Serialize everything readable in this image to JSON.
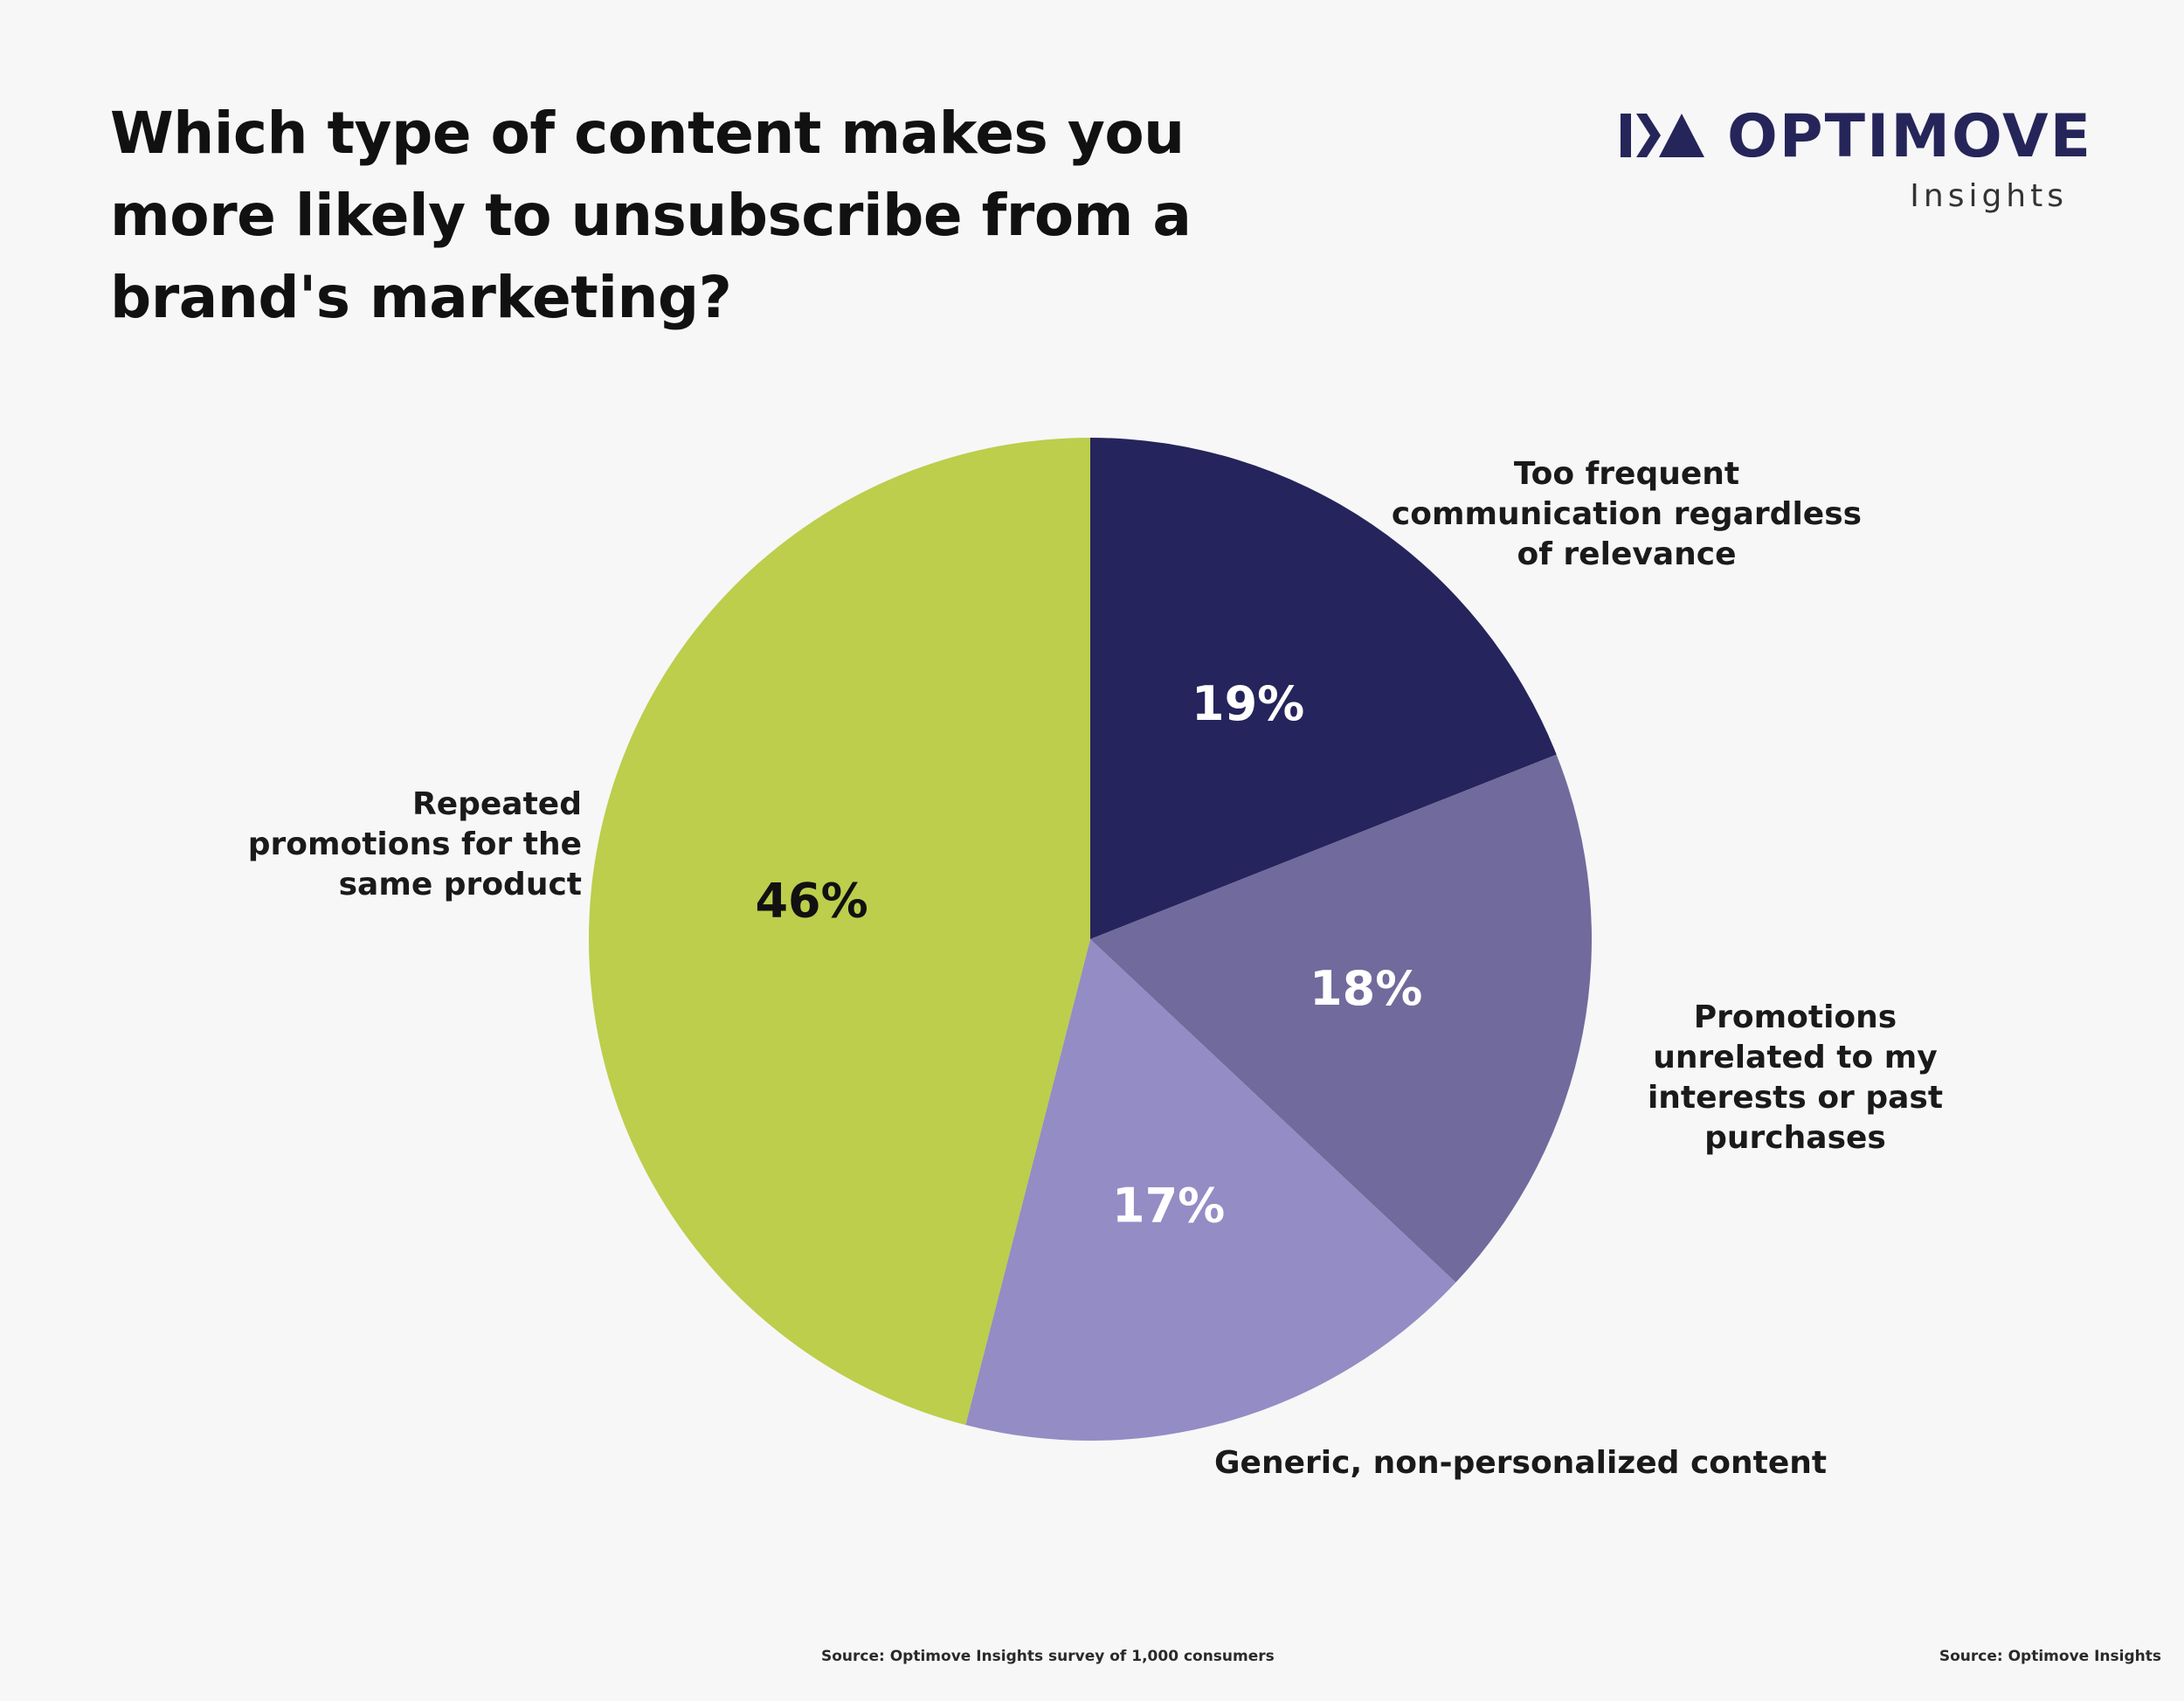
{
  "brand": {
    "name": "OPTIMOVE",
    "subtitle": "Insights",
    "color": "#26255a"
  },
  "footnotes": {
    "left": "Source: Optimove Insights survey of 1,000 consumers",
    "right": "Source: Optimove Insights"
  },
  "chart_data": {
    "type": "pie",
    "title": "Which type of content makes you more likely to unsubscribe from a brand's marketing?",
    "unit": "%",
    "start_angle_deg": 0,
    "direction": "clockwise",
    "slices": [
      {
        "label": "Too frequent communication regardless of relevance",
        "value": 19,
        "value_label": "19%",
        "color": "#25245c",
        "text_color": "#ffffff"
      },
      {
        "label": "Promotions unrelated to my interests or past purchases",
        "value": 18,
        "value_label": "18%",
        "color": "#716a9c",
        "text_color": "#ffffff"
      },
      {
        "label": "Generic, non-personalized content",
        "value": 17,
        "value_label": "17%",
        "color": "#948cc4",
        "text_color": "#ffffff"
      },
      {
        "label": "Repeated promotions for the same product",
        "value": 46,
        "value_label": "46%",
        "color": "#bcce4c",
        "text_color": "#111111"
      }
    ]
  }
}
